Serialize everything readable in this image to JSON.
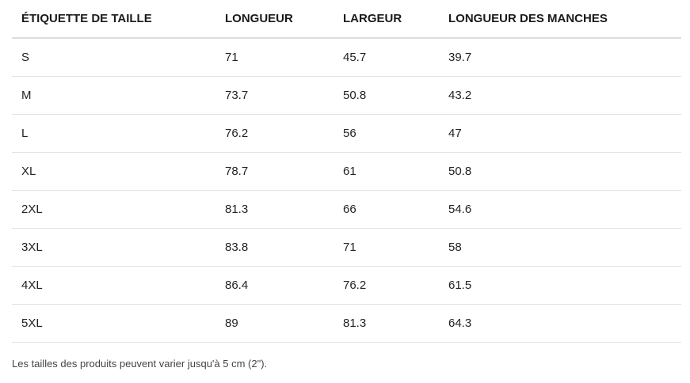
{
  "table": {
    "headers": [
      "ÉTIQUETTE DE TAILLE",
      "LONGUEUR",
      "LARGEUR",
      "LONGUEUR DES MANCHES"
    ],
    "rows": [
      [
        "S",
        "71",
        "45.7",
        "39.7"
      ],
      [
        "M",
        "73.7",
        "50.8",
        "43.2"
      ],
      [
        "L",
        "76.2",
        "56",
        "47"
      ],
      [
        "XL",
        "78.7",
        "61",
        "50.8"
      ],
      [
        "2XL",
        "81.3",
        "66",
        "54.6"
      ],
      [
        "3XL",
        "83.8",
        "71",
        "58"
      ],
      [
        "4XL",
        "86.4",
        "76.2",
        "61.5"
      ],
      [
        "5XL",
        "89",
        "81.3",
        "64.3"
      ]
    ]
  },
  "footnote": "Les tailles des produits peuvent varier jusqu'à 5 cm (2\")."
}
